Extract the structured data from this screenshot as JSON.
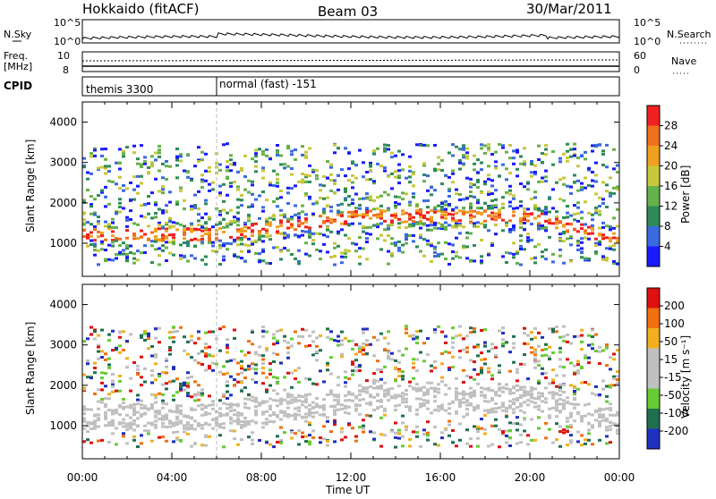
{
  "header": {
    "station": "Hokkaido (fitACF)",
    "beam": "Beam 03",
    "date": "30/Mar/2011"
  },
  "noise_panel": {
    "left_label": "N.Sky",
    "right_label": "N.Search",
    "y_ticks_left": [
      "10^5",
      "10^0"
    ],
    "y_ticks_right": [
      "10^5",
      "10^0"
    ]
  },
  "freq_panel": {
    "left_label_line1": "Freq.",
    "left_label_line2": "[MHz]",
    "right_label": "Nave",
    "y_ticks_left": [
      "10",
      "8"
    ],
    "y_ticks_right": [
      "60",
      "0"
    ]
  },
  "cpid_panel": {
    "label": "CPID",
    "segment_1": "themis 3300",
    "segment_2": "normal (fast) -151"
  },
  "chart_data": [
    {
      "type": "heatmap",
      "name": "power-panel",
      "ylabel": "Slant Range [km]",
      "y_ticks": [
        "4000",
        "3000",
        "2000",
        "1000"
      ],
      "y_tick_values": [
        4000,
        3000,
        2000,
        1000
      ],
      "ylim": [
        180,
        4500
      ],
      "x_ticks": [
        "00:00",
        "04:00",
        "08:00",
        "12:00",
        "16:00",
        "20:00",
        "00:00"
      ],
      "xlim_hours": [
        0,
        24
      ],
      "colorbar": {
        "label": "Power [dB]",
        "ticks": [
          "28",
          "24",
          "20",
          "16",
          "12",
          "8",
          "4"
        ],
        "range": [
          0,
          30
        ]
      }
    },
    {
      "type": "heatmap",
      "name": "velocity-panel",
      "ylabel": "Slant Range [km]",
      "y_ticks": [
        "4000",
        "3000",
        "2000",
        "1000"
      ],
      "y_tick_values": [
        4000,
        3000,
        2000,
        1000
      ],
      "ylim": [
        180,
        4500
      ],
      "x_ticks": [
        "00:00",
        "04:00",
        "08:00",
        "12:00",
        "16:00",
        "20:00",
        "00:00"
      ],
      "xlim_hours": [
        0,
        24
      ],
      "xlabel": "Time UT",
      "colorbar": {
        "label": "Velocity [m s⁻¹]",
        "ticks": [
          "200",
          "100",
          "50",
          "15",
          "-15",
          "-50",
          "-100",
          "-200"
        ]
      }
    }
  ],
  "colors": {
    "power_scale": [
      "#1a1aff",
      "#3a6ae0",
      "#2e8b57",
      "#66b24a",
      "#c8c83a",
      "#f0a020",
      "#f07020",
      "#f02020"
    ],
    "velocity_scale": [
      "#2030c0",
      "#207050",
      "#66cc33",
      "#c0c0c0",
      "#c0c0c0",
      "#f0b020",
      "#f07010",
      "#e01010"
    ],
    "ground_scatter": "#c0c0c0"
  }
}
